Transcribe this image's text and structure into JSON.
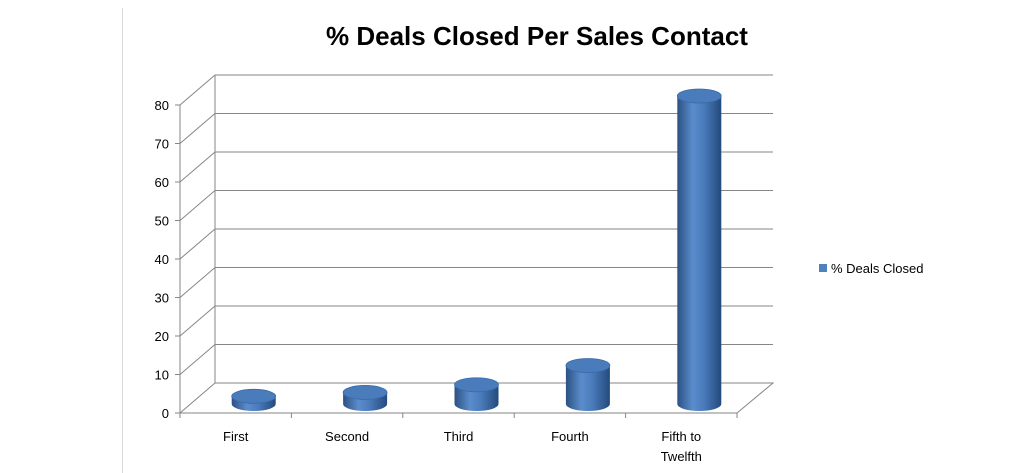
{
  "chart_data": {
    "type": "bar",
    "title": "% Deals Closed Per Sales Contact",
    "xlabel": "",
    "ylabel": "",
    "categories": [
      [
        "First"
      ],
      [
        "Second"
      ],
      [
        "Third"
      ],
      [
        "Fourth"
      ],
      [
        "Fifth to",
        "Twelfth"
      ]
    ],
    "series": [
      {
        "name": "% Deals Closed",
        "values": [
          2,
          3,
          5,
          10,
          80
        ],
        "color": "#4f81bd"
      }
    ],
    "ylim": [
      0,
      80
    ],
    "yticks": [
      0,
      10,
      20,
      30,
      40,
      50,
      60,
      70,
      80
    ],
    "grid": true,
    "legend": "right",
    "style": "3d-cylinder"
  }
}
